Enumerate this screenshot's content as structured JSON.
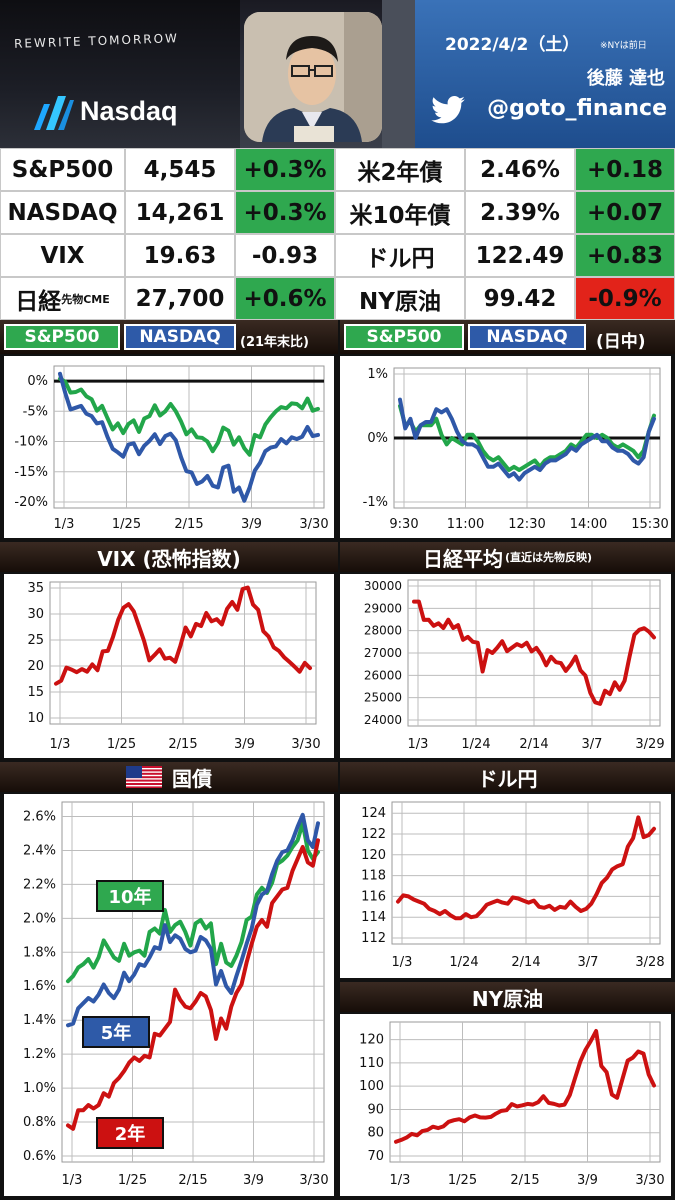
{
  "header": {
    "brand_text": "REWRITE TOMORROW",
    "logo_text": "Nasdaq",
    "date": "2022/4/2（土）",
    "date_note": "※NYは前日",
    "author": "後藤 達也",
    "handle": "@goto_finance",
    "icons": [
      "nasdaq-logo-icon",
      "twitter-icon"
    ]
  },
  "market_table": {
    "rows": [
      {
        "name": "S&P500",
        "value": "4,545",
        "change": "+0.3%",
        "change_color": "green",
        "name2": "米2年債",
        "value2": "2.46%",
        "change2": "+0.18",
        "change2_color": "green"
      },
      {
        "name": "NASDAQ",
        "value": "14,261",
        "change": "+0.3%",
        "change_color": "green",
        "name2": "米10年債",
        "value2": "2.39%",
        "change2": "+0.07",
        "change2_color": "green"
      },
      {
        "name": "VIX",
        "value": "19.63",
        "change": "-0.93",
        "change_color": "none",
        "name2": "ドル円",
        "value2": "122.49",
        "change2": "+0.83",
        "change2_color": "green"
      },
      {
        "name": "日経",
        "name_sub": "先物CME",
        "value": "27,700",
        "change": "+0.6%",
        "change_color": "green",
        "name2": "NY原油",
        "value2": "99.42",
        "change2": "-0.9%",
        "change2_color": "red"
      }
    ]
  },
  "colors": {
    "green": "#2fa84f",
    "blue": "#2e5aa8",
    "red": "#cc1111",
    "dark": "#1a0f0a"
  },
  "panels": {
    "sp_nasdaq_ytd": {
      "tag1": "S&P500",
      "tag2": "NASDAQ",
      "note": "(21年末比)"
    },
    "sp_nasdaq_intraday": {
      "tag1": "S&P500",
      "tag2": "NASDAQ",
      "note": "(日中)"
    },
    "vix": {
      "title": "VIX (恐怖指数)"
    },
    "nikkei": {
      "title": "日経平均",
      "title_sub": "(直近は先物反映)"
    },
    "treasury": {
      "title": "国債",
      "label_10y": "10年",
      "label_5y": "5年",
      "label_2y": "2年",
      "flag": "us-flag-icon"
    },
    "usdjpy": {
      "title": "ドル円"
    },
    "oil": {
      "title": "NY原油"
    }
  },
  "chart_data": [
    {
      "id": "sp_nasdaq_ytd",
      "type": "line",
      "x_ticks": [
        "1/3",
        "1/25",
        "2/15",
        "3/9",
        "3/30"
      ],
      "y_ticks": [
        "0%",
        "-5%",
        "-10%",
        "-15%",
        "-20%"
      ],
      "ylim": [
        -20,
        1.5
      ],
      "baseline": 0,
      "grid": true,
      "series": [
        {
          "name": "S&P500",
          "color": "green",
          "values": [
            0.4,
            -0.1,
            -1.9,
            -1.8,
            -1.4,
            -2.5,
            -3.0,
            -4.9,
            -4.1,
            -6.1,
            -8.0,
            -7.0,
            -8.6,
            -7.1,
            -6.5,
            -8.4,
            -6.2,
            -5.8,
            -4.0,
            -5.7,
            -5.0,
            -3.8,
            -5.0,
            -6.7,
            -8.8,
            -8.0,
            -9.3,
            -9.4,
            -10.0,
            -11.6,
            -10.2,
            -7.7,
            -8.2,
            -10.5,
            -9.3,
            -11.1,
            -12.2,
            -8.9,
            -9.3,
            -7.2,
            -6.0,
            -5.0,
            -4.3,
            -4.5,
            -3.7,
            -3.8,
            -4.5,
            -2.9,
            -4.9,
            -4.6
          ]
        },
        {
          "name": "NASDAQ",
          "color": "blue",
          "values": [
            1.2,
            -2.0,
            -4.7,
            -4.4,
            -4.1,
            -5.4,
            -5.8,
            -7.0,
            -6.8,
            -9.2,
            -11.2,
            -11.8,
            -12.5,
            -10.5,
            -10.3,
            -12.1,
            -10.7,
            -9.9,
            -8.8,
            -10.4,
            -9.1,
            -8.7,
            -9.8,
            -12.6,
            -14.9,
            -15.1,
            -17.0,
            -16.6,
            -15.7,
            -17.3,
            -17.6,
            -14.3,
            -14.0,
            -18.3,
            -17.6,
            -19.8,
            -17.6,
            -14.8,
            -13.5,
            -11.6,
            -11.0,
            -10.8,
            -9.6,
            -10.3,
            -9.3,
            -9.6,
            -9.2,
            -7.6,
            -9.1,
            -8.9
          ]
        }
      ]
    },
    {
      "id": "sp_nasdaq_intraday",
      "type": "line",
      "x_ticks": [
        "9:30",
        "11:00",
        "12:30",
        "14:00",
        "15:30"
      ],
      "y_ticks": [
        "1%",
        "0%",
        "-1%"
      ],
      "ylim": [
        -1,
        1
      ],
      "baseline": 0,
      "grid": true,
      "series": [
        {
          "name": "S&P500",
          "color": "green",
          "values": [
            0.5,
            0.2,
            0.25,
            0.1,
            0.2,
            0.2,
            0.2,
            0.3,
            0.05,
            -0.1,
            0.0,
            -0.05,
            -0.1,
            0.05,
            0.05,
            -0.05,
            -0.2,
            -0.3,
            -0.35,
            -0.3,
            -0.4,
            -0.5,
            -0.45,
            -0.5,
            -0.45,
            -0.4,
            -0.35,
            -0.45,
            -0.35,
            -0.3,
            -0.3,
            -0.25,
            -0.2,
            -0.1,
            -0.15,
            -0.05,
            0.05,
            0.05,
            0.0,
            0.05,
            0.0,
            -0.1,
            -0.15,
            -0.1,
            -0.15,
            -0.2,
            -0.3,
            -0.2,
            0.1,
            0.35
          ]
        },
        {
          "name": "NASDAQ",
          "color": "blue",
          "values": [
            0.6,
            0.15,
            0.3,
            0.0,
            0.2,
            0.25,
            0.25,
            0.45,
            0.4,
            0.45,
            0.3,
            0.1,
            -0.05,
            -0.1,
            -0.1,
            -0.15,
            -0.3,
            -0.45,
            -0.45,
            -0.4,
            -0.5,
            -0.6,
            -0.55,
            -0.65,
            -0.55,
            -0.5,
            -0.45,
            -0.5,
            -0.4,
            -0.35,
            -0.35,
            -0.3,
            -0.25,
            -0.15,
            -0.2,
            -0.1,
            -0.05,
            0.0,
            0.05,
            -0.05,
            -0.05,
            -0.15,
            -0.2,
            -0.2,
            -0.25,
            -0.35,
            -0.4,
            -0.3,
            0.1,
            0.3
          ]
        }
      ]
    },
    {
      "id": "vix",
      "type": "line",
      "x_ticks": [
        "1/3",
        "1/25",
        "2/15",
        "3/9",
        "3/30"
      ],
      "y_ticks": [
        "35",
        "30",
        "25",
        "20",
        "15",
        "10"
      ],
      "ylim": [
        10,
        35
      ],
      "grid": true,
      "series": [
        {
          "name": "VIX",
          "color": "red",
          "values": [
            16.6,
            17.2,
            19.7,
            19.3,
            18.8,
            19.4,
            18.9,
            20.3,
            19.2,
            22.8,
            22.9,
            25.6,
            28.9,
            31.2,
            31.9,
            30.5,
            27.7,
            24.8,
            21.1,
            22.1,
            23.2,
            21.4,
            21.6,
            20.8,
            23.9,
            27.4,
            25.7,
            28.1,
            27.7,
            30.2,
            28.6,
            29.0,
            28.0,
            31.0,
            32.3,
            30.8,
            34.8,
            35.1,
            31.8,
            30.8,
            26.7,
            25.7,
            23.6,
            22.9,
            21.7,
            20.8,
            19.9,
            18.9,
            20.6,
            19.6
          ]
        }
      ]
    },
    {
      "id": "nikkei",
      "type": "line",
      "x_ticks": [
        "1/3",
        "1/24",
        "2/14",
        "3/7",
        "3/29"
      ],
      "y_ticks": [
        "30000",
        "29000",
        "28000",
        "27000",
        "26000",
        "25000",
        "24000"
      ],
      "ylim": [
        24000,
        30000
      ],
      "grid": true,
      "series": [
        {
          "name": "日経平均",
          "color": "red",
          "values": [
            29300,
            29300,
            28480,
            28490,
            28220,
            28330,
            28120,
            28490,
            28120,
            28250,
            27590,
            27720,
            27500,
            27460,
            26170,
            27130,
            27000,
            27240,
            27530,
            27080,
            27240,
            27400,
            27300,
            27460,
            27070,
            27230,
            26910,
            26450,
            26830,
            26590,
            26550,
            26200,
            26470,
            26840,
            26220,
            25990,
            25220,
            24790,
            24720,
            25310,
            25160,
            25690,
            25350,
            25760,
            26830,
            27820,
            28040,
            28110,
            27950,
            27700
          ]
        }
      ]
    },
    {
      "id": "treasury",
      "type": "line",
      "x_ticks": [
        "1/3",
        "1/25",
        "2/15",
        "3/9",
        "3/30"
      ],
      "y_ticks": [
        "2.6%",
        "2.4%",
        "2.2%",
        "2.0%",
        "1.8%",
        "1.6%",
        "1.4%",
        "1.2%",
        "1.0%",
        "0.8%",
        "0.6%"
      ],
      "ylim": [
        0.6,
        2.65
      ],
      "grid": true,
      "series": [
        {
          "name": "10年",
          "color": "green",
          "values": [
            1.63,
            1.66,
            1.71,
            1.73,
            1.76,
            1.71,
            1.77,
            1.87,
            1.82,
            1.77,
            1.75,
            1.85,
            1.78,
            1.8,
            1.81,
            1.78,
            1.92,
            1.94,
            1.91,
            2.05,
            1.92,
            1.96,
            1.98,
            1.92,
            1.84,
            1.97,
            1.99,
            1.94,
            1.97,
            1.73,
            1.85,
            1.74,
            1.72,
            1.78,
            1.86,
            1.99,
            2.01,
            2.14,
            2.18,
            2.15,
            2.21,
            2.32,
            2.34,
            2.37,
            2.42,
            2.46,
            2.56,
            2.4,
            2.35,
            2.39
          ]
        },
        {
          "name": "5年",
          "color": "blue",
          "values": [
            1.37,
            1.38,
            1.47,
            1.5,
            1.53,
            1.51,
            1.55,
            1.61,
            1.56,
            1.53,
            1.58,
            1.68,
            1.63,
            1.67,
            1.73,
            1.72,
            1.77,
            1.83,
            1.82,
            1.96,
            1.86,
            1.9,
            1.88,
            1.82,
            1.8,
            1.81,
            1.89,
            1.87,
            1.82,
            1.61,
            1.69,
            1.6,
            1.56,
            1.66,
            1.75,
            1.85,
            1.94,
            2.08,
            2.14,
            2.16,
            2.26,
            2.34,
            2.39,
            2.4,
            2.46,
            2.54,
            2.61,
            2.46,
            2.42,
            2.56
          ]
        },
        {
          "name": "2年",
          "color": "red",
          "values": [
            0.78,
            0.76,
            0.87,
            0.87,
            0.9,
            0.88,
            0.9,
            0.97,
            0.95,
            1.03,
            1.06,
            1.1,
            1.15,
            1.18,
            1.16,
            1.19,
            1.18,
            1.32,
            1.31,
            1.35,
            1.39,
            1.58,
            1.52,
            1.48,
            1.47,
            1.51,
            1.56,
            1.54,
            1.46,
            1.29,
            1.41,
            1.35,
            1.48,
            1.56,
            1.61,
            1.74,
            1.85,
            1.95,
            1.99,
            1.95,
            2.09,
            2.13,
            2.17,
            2.18,
            2.28,
            2.35,
            2.42,
            2.33,
            2.31,
            2.46
          ]
        }
      ]
    },
    {
      "id": "usdjpy",
      "type": "line",
      "x_ticks": [
        "1/3",
        "1/24",
        "2/14",
        "3/7",
        "3/28"
      ],
      "y_ticks": [
        "124",
        "122",
        "120",
        "118",
        "116",
        "114",
        "112"
      ],
      "ylim": [
        112,
        124.5
      ],
      "grid": true,
      "series": [
        {
          "name": "ドル円",
          "color": "red",
          "values": [
            115.5,
            116.1,
            116.0,
            115.7,
            115.5,
            115.3,
            114.8,
            114.6,
            114.3,
            114.6,
            114.2,
            113.9,
            113.9,
            114.3,
            114.0,
            114.1,
            114.6,
            115.2,
            115.4,
            115.6,
            115.4,
            115.3,
            115.9,
            115.8,
            115.6,
            115.4,
            115.6,
            115.0,
            114.9,
            115.1,
            114.7,
            115.0,
            114.9,
            115.5,
            115.0,
            114.6,
            114.8,
            115.3,
            116.2,
            117.3,
            117.8,
            118.6,
            118.9,
            119.1,
            120.8,
            121.6,
            123.6,
            121.7,
            121.9,
            122.5
          ]
        }
      ]
    },
    {
      "id": "oil",
      "type": "line",
      "x_ticks": [
        "1/3",
        "1/25",
        "2/15",
        "3/9",
        "3/30"
      ],
      "y_ticks": [
        "120",
        "110",
        "100",
        "90",
        "80",
        "70"
      ],
      "ylim": [
        70,
        125
      ],
      "grid": true,
      "series": [
        {
          "name": "NY原油",
          "color": "red",
          "values": [
            76.1,
            76.9,
            77.9,
            79.5,
            78.9,
            80.7,
            81.2,
            82.6,
            82.0,
            82.7,
            84.7,
            85.4,
            85.8,
            84.9,
            86.6,
            87.4,
            86.6,
            86.5,
            86.8,
            88.2,
            89.4,
            89.7,
            92.3,
            91.3,
            91.8,
            92.4,
            92.1,
            93.1,
            95.7,
            92.8,
            92.4,
            91.7,
            92.1,
            96.2,
            103.4,
            110.6,
            115.7,
            119.4,
            123.7,
            108.7,
            106.0,
            96.4,
            95.0,
            103.0,
            111.0,
            112.3,
            114.9,
            114.0,
            105.0,
            100.3
          ]
        }
      ]
    }
  ]
}
